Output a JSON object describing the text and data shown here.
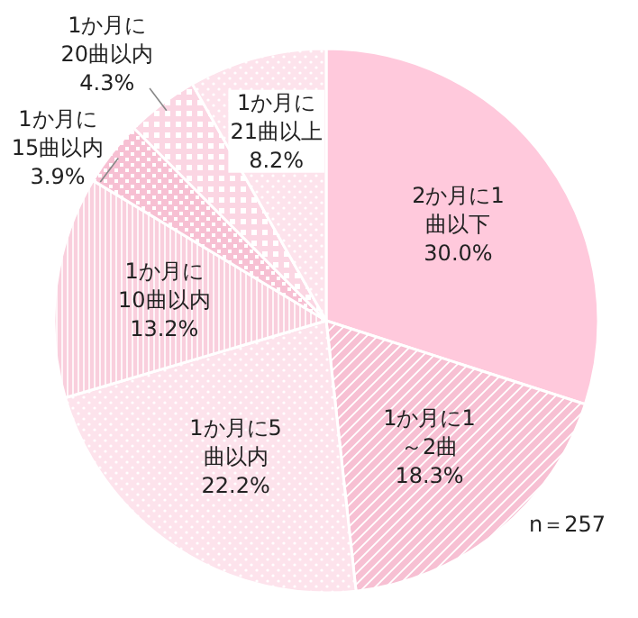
{
  "chart_data": {
    "type": "pie",
    "categories": [
      "2か月に1曲以下",
      "1か月に1～2曲",
      "1か月に5曲以内",
      "1か月に10曲以内",
      "1か月に15曲以内",
      "1か月に20曲以内",
      "1か月に21曲以上"
    ],
    "values": [
      30.0,
      18.3,
      22.2,
      13.2,
      3.9,
      4.3,
      8.2
    ],
    "value_labels": [
      "30.0%",
      "18.3%",
      "22.2%",
      "13.2%",
      "3.9%",
      "4.3%",
      "8.2%"
    ],
    "colors": [
      "#ffc9dc",
      "#f7c0d3",
      "#fde3ec",
      "#f9cfdd",
      "#f7c0d3",
      "#fbd6e3",
      "#fde3ec"
    ],
    "annotations": [
      "n＝257"
    ]
  }
}
